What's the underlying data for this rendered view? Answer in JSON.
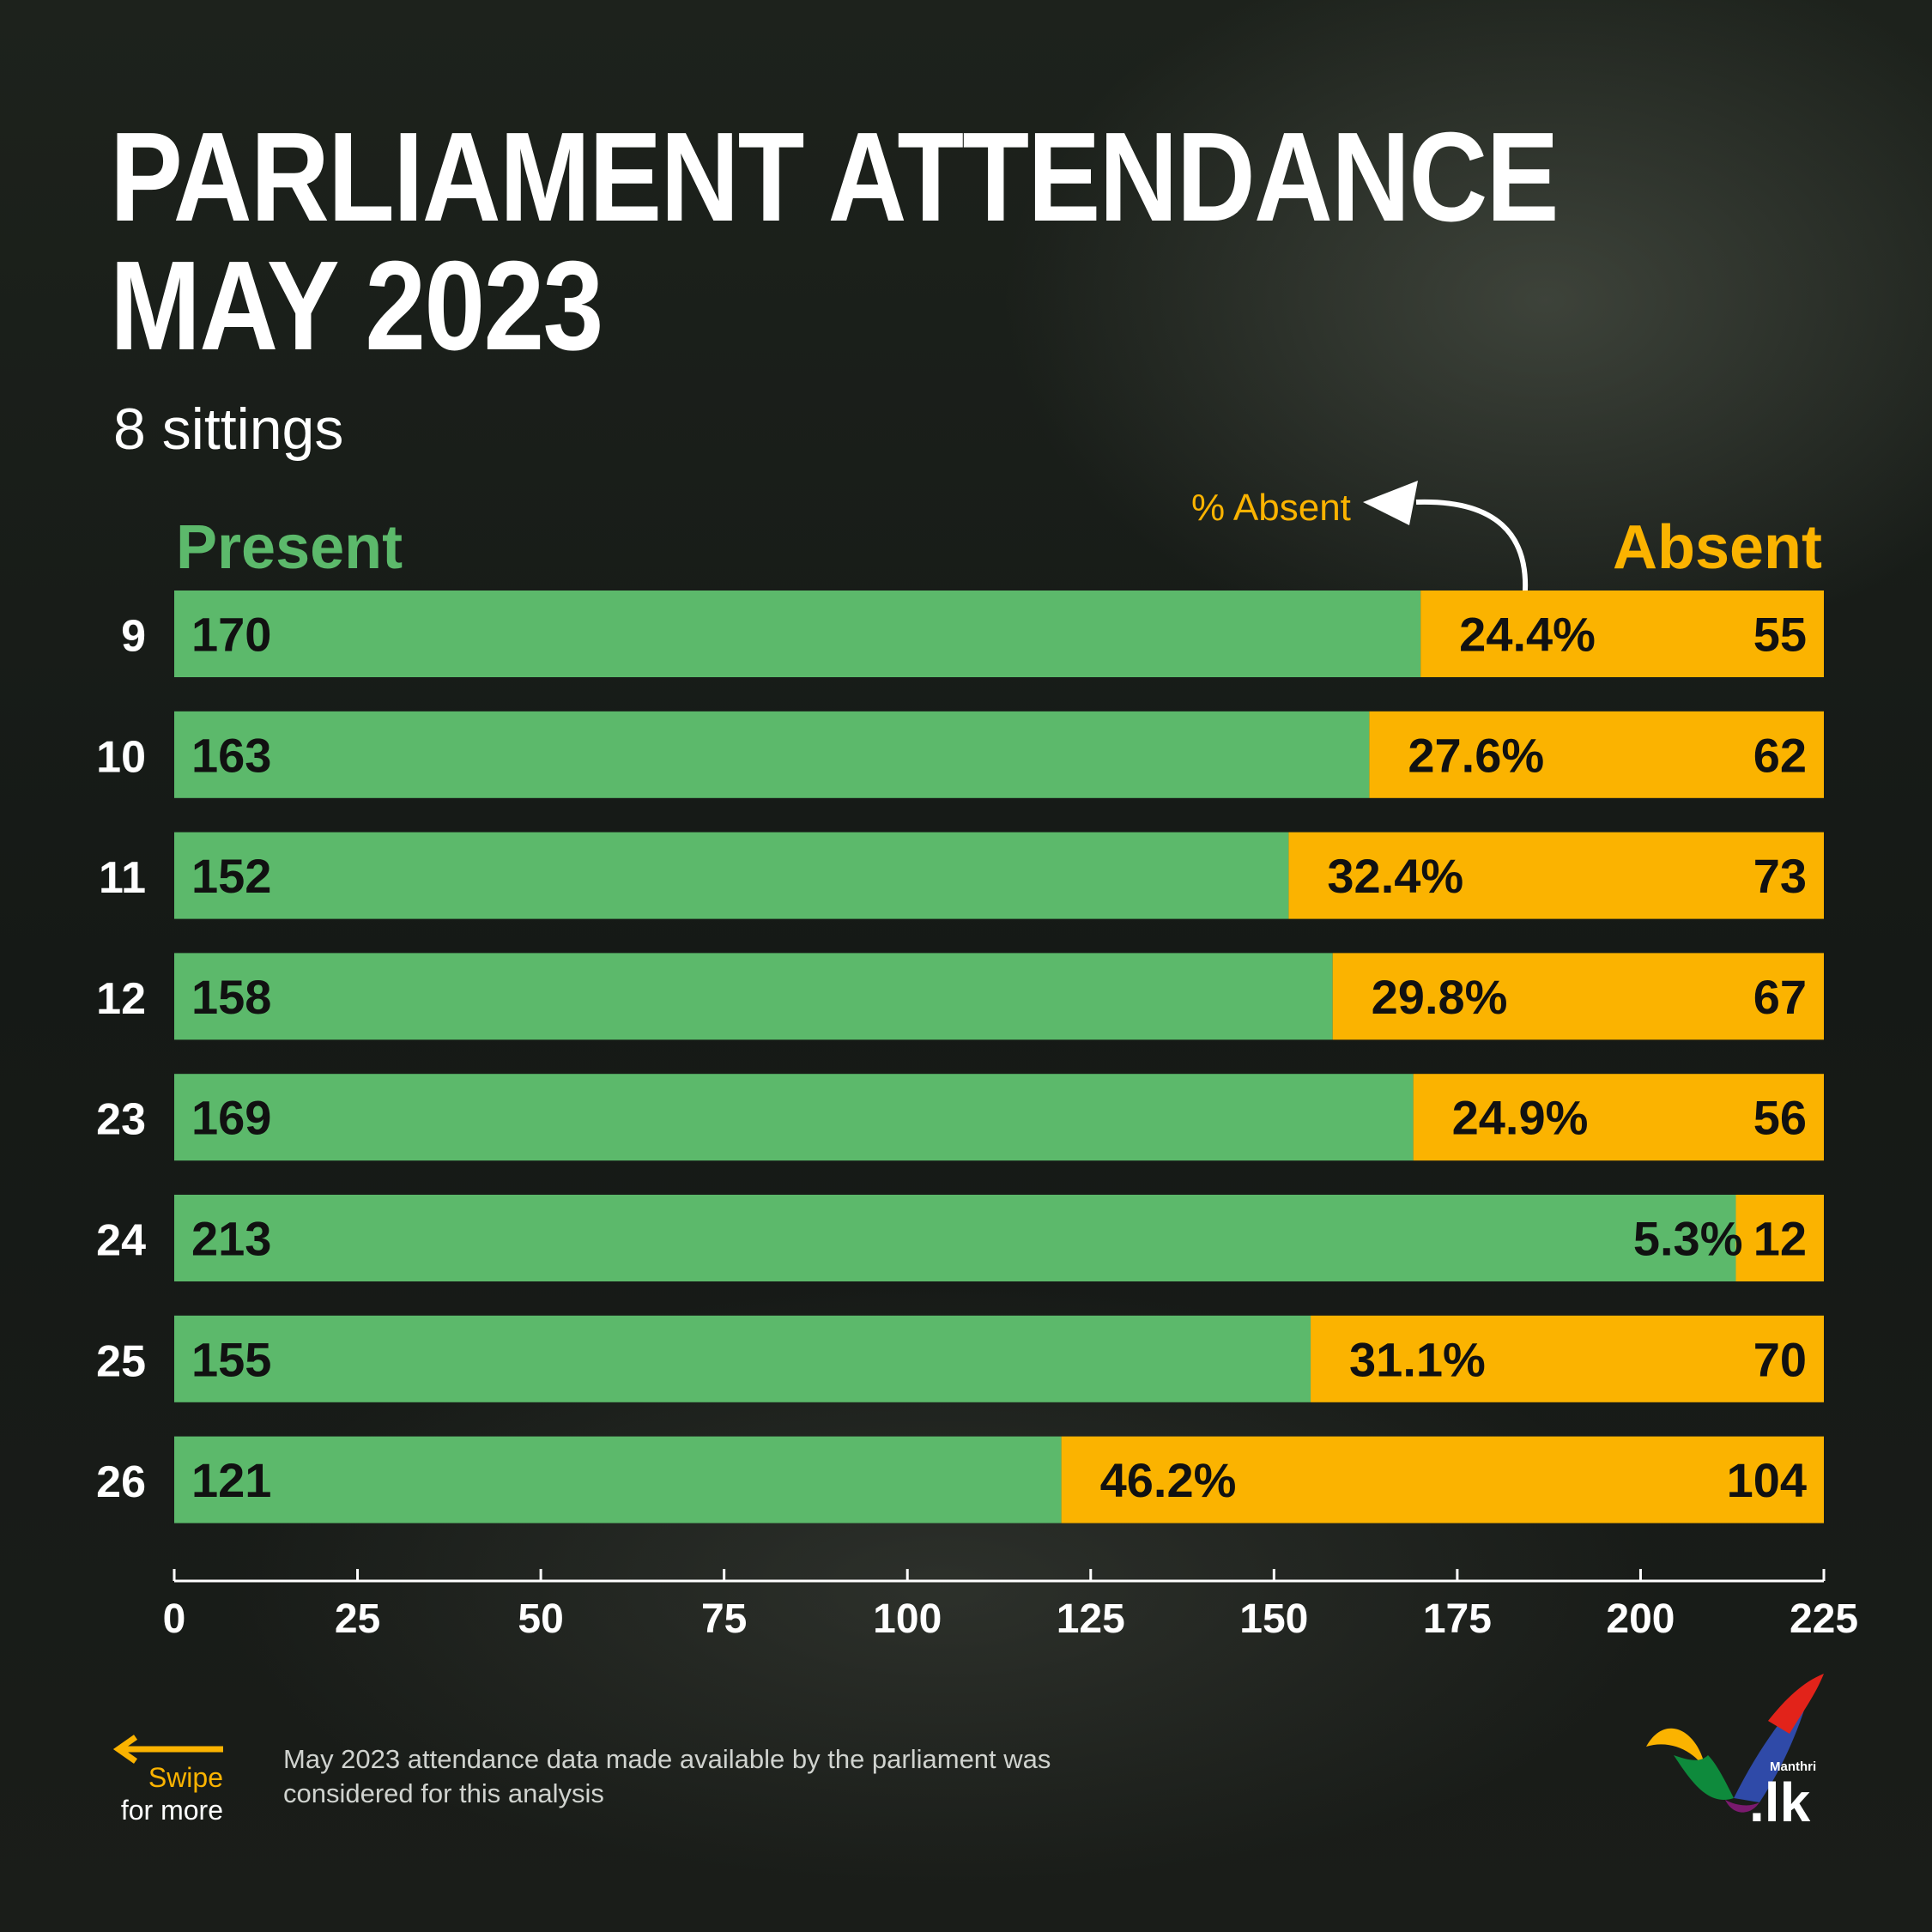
{
  "title_line1": "PARLIAMENT ATTENDANCE",
  "title_line2": "MAY 2023",
  "subtitle": "8 sittings",
  "legend": {
    "present": "Present",
    "absent": "Absent",
    "pct_absent": "% Absent"
  },
  "colors": {
    "present": "#5cb96b",
    "absent": "#fbb300",
    "text_dark": "#111111",
    "text_light": "#ffffff"
  },
  "chart_data": {
    "type": "bar",
    "orientation": "horizontal",
    "stacked": true,
    "categories": [
      "9",
      "10",
      "11",
      "12",
      "23",
      "24",
      "25",
      "26"
    ],
    "series": [
      {
        "name": "Present",
        "values": [
          170,
          163,
          152,
          158,
          169,
          213,
          155,
          121
        ]
      },
      {
        "name": "Absent",
        "values": [
          55,
          62,
          73,
          67,
          56,
          12,
          70,
          104
        ]
      }
    ],
    "absent_percent_labels": [
      "24.4%",
      "27.6%",
      "32.4%",
      "29.8%",
      "24.9%",
      "5.3%",
      "31.1%",
      "46.2%"
    ],
    "xlim": [
      0,
      225
    ],
    "xticks": [
      0,
      25,
      50,
      75,
      100,
      125,
      150,
      175,
      200,
      225
    ],
    "grid": false
  },
  "footer": {
    "swipe_line1": "Swipe",
    "swipe_line2": "for more",
    "note": "May 2023 attendance data made available by the parliament was considered for this analysis",
    "logo_small": "Manthri",
    "logo_main": ".lk"
  }
}
